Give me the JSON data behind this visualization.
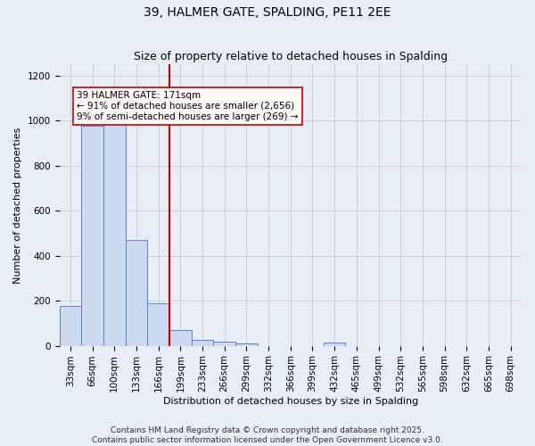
{
  "title_line1": "39, HALMER GATE, SPALDING, PE11 2EE",
  "title_line2": "Size of property relative to detached houses in Spalding",
  "xlabel": "Distribution of detached houses by size in Spalding",
  "ylabel": "Number of detached properties",
  "categories": [
    "33sqm",
    "66sqm",
    "100sqm",
    "133sqm",
    "166sqm",
    "199sqm",
    "233sqm",
    "266sqm",
    "299sqm",
    "332sqm",
    "366sqm",
    "399sqm",
    "432sqm",
    "465sqm",
    "499sqm",
    "532sqm",
    "565sqm",
    "598sqm",
    "632sqm",
    "665sqm",
    "698sqm"
  ],
  "values": [
    175,
    975,
    1010,
    470,
    190,
    70,
    28,
    20,
    12,
    0,
    0,
    0,
    13,
    0,
    0,
    0,
    0,
    0,
    0,
    0,
    0
  ],
  "bar_color": "#ccd9f0",
  "bar_edge_color": "#5585c8",
  "vline_x": 4.5,
  "vline_color": "#cc0000",
  "annotation_text": "39 HALMER GATE: 171sqm\n← 91% of detached houses are smaller (2,656)\n9% of semi-detached houses are larger (269) →",
  "annotation_facecolor": "#fff8f8",
  "annotation_edgecolor": "#cc0000",
  "ylim": [
    0,
    1250
  ],
  "yticks": [
    0,
    200,
    400,
    600,
    800,
    1000,
    1200
  ],
  "grid_color": "#cccccc",
  "plot_bg_color": "#e8eef8",
  "fig_bg_color": "#e8eef8",
  "footer_line1": "Contains HM Land Registry data © Crown copyright and database right 2025.",
  "footer_line2": "Contains public sector information licensed under the Open Government Licence v3.0.",
  "title_fontsize": 10,
  "axis_label_fontsize": 8,
  "tick_fontsize": 7.5,
  "footer_fontsize": 6.5,
  "annot_fontsize": 7.5
}
